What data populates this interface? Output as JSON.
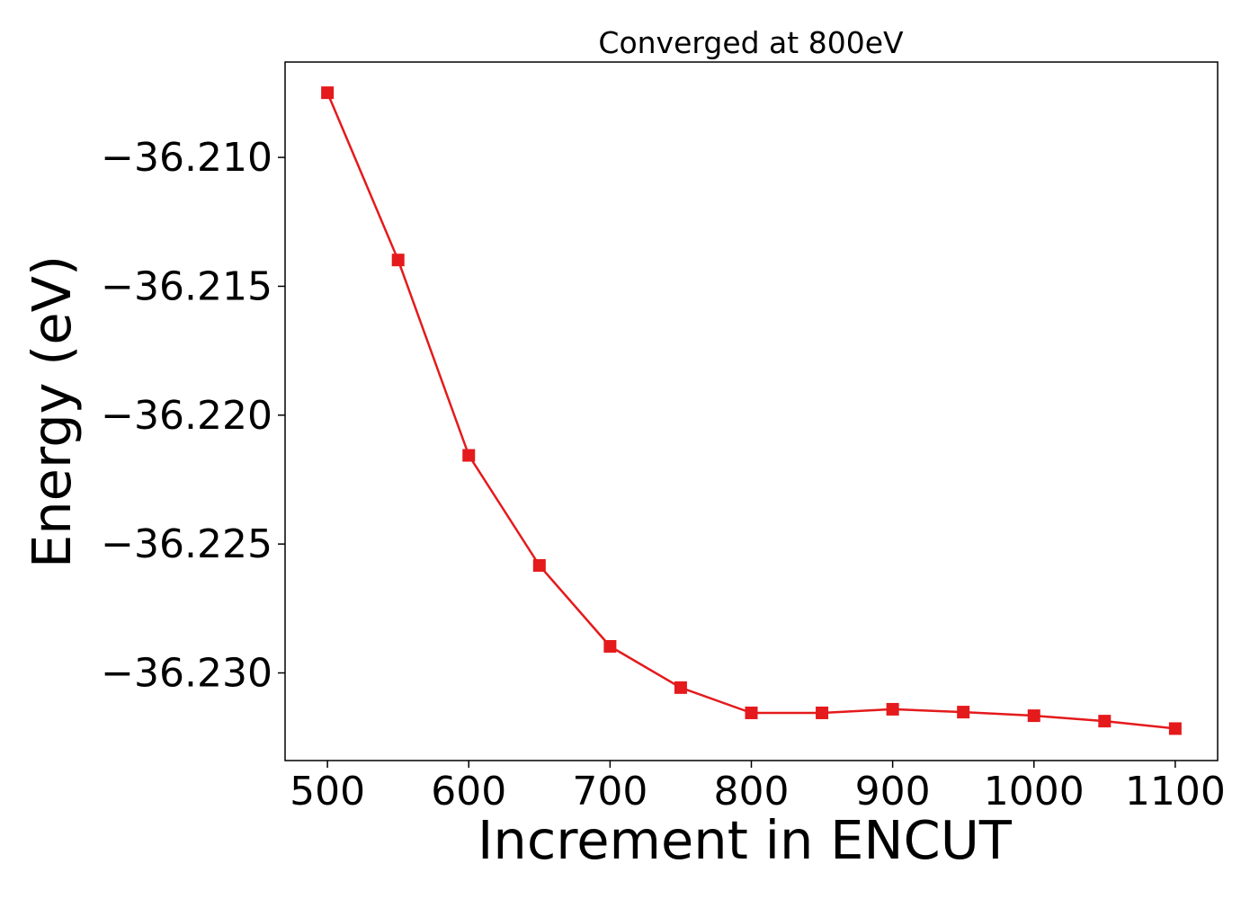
{
  "chart_data": {
    "type": "line",
    "title": "Converged at 800eV",
    "xlabel": "Increment in ENCUT",
    "ylabel": "Energy (eV)",
    "x": [
      500,
      550,
      600,
      650,
      700,
      750,
      800,
      850,
      900,
      950,
      1000,
      1050,
      1100
    ],
    "series": [
      {
        "values": [
          -36.20749,
          -36.21398,
          -36.22156,
          -36.22583,
          -36.22897,
          -36.23057,
          -36.23155,
          -36.23155,
          -36.23141,
          -36.23152,
          -36.23166,
          -36.23187,
          -36.23216
        ],
        "color": "#e41a1c",
        "marker": "square"
      }
    ],
    "xticks": [
      500,
      600,
      700,
      800,
      900,
      1000,
      1100
    ],
    "xtick_labels": [
      "500",
      "600",
      "700",
      "800",
      "900",
      "1000",
      "1100"
    ],
    "yticks": [
      -36.21,
      -36.215,
      -36.22,
      -36.225,
      -36.23
    ],
    "ytick_labels": [
      "−36.210",
      "−36.215",
      "−36.220",
      "−36.225",
      "−36.230"
    ],
    "xlim": [
      470,
      1130
    ],
    "ylim": [
      -36.2334,
      -36.2063
    ],
    "grid": false,
    "legend": "none"
  }
}
